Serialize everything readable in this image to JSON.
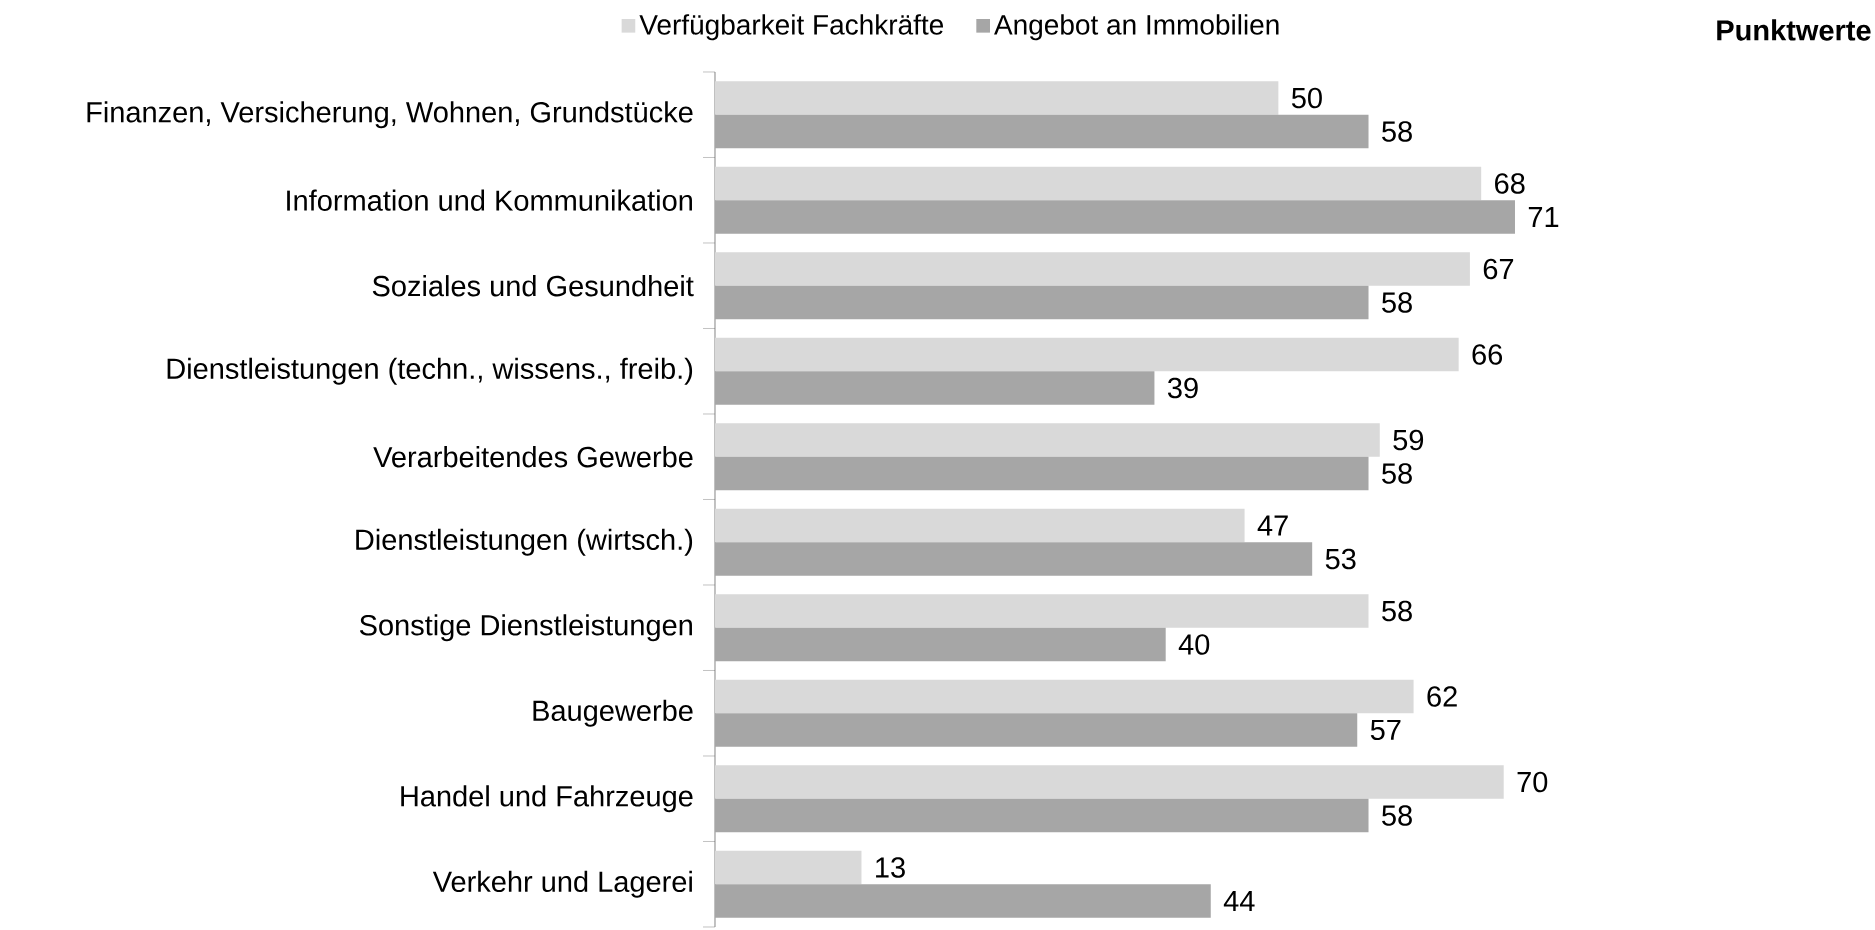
{
  "chart_data": {
    "type": "bar",
    "orientation": "horizontal",
    "annotations": [
      "Punktwerte"
    ],
    "xlim": [
      0,
      71
    ],
    "categories": [
      "Finanzen, Versicherung, Wohnen, Grundstücke",
      "Information und Kommunikation",
      "Soziales und Gesundheit",
      "Dienstleistungen (techn., wissens., freib.)",
      "Verarbeitendes Gewerbe",
      "Dienstleistungen (wirtsch.)",
      "Sonstige Dienstleistungen",
      "Baugewerbe",
      "Handel und Fahrzeuge",
      "Verkehr und Lagerei"
    ],
    "series": [
      {
        "name": "Verfügbarkeit Fachkräfte",
        "color": "#d9d9d9",
        "values": [
          50,
          68,
          67,
          66,
          59,
          47,
          58,
          62,
          70,
          13
        ]
      },
      {
        "name": "Angebot an Immobilien",
        "color": "#a6a6a6",
        "values": [
          58,
          71,
          58,
          39,
          58,
          53,
          40,
          57,
          58,
          44
        ]
      }
    ],
    "tick_labels": "y",
    "data_labels": true,
    "legend": "top"
  }
}
